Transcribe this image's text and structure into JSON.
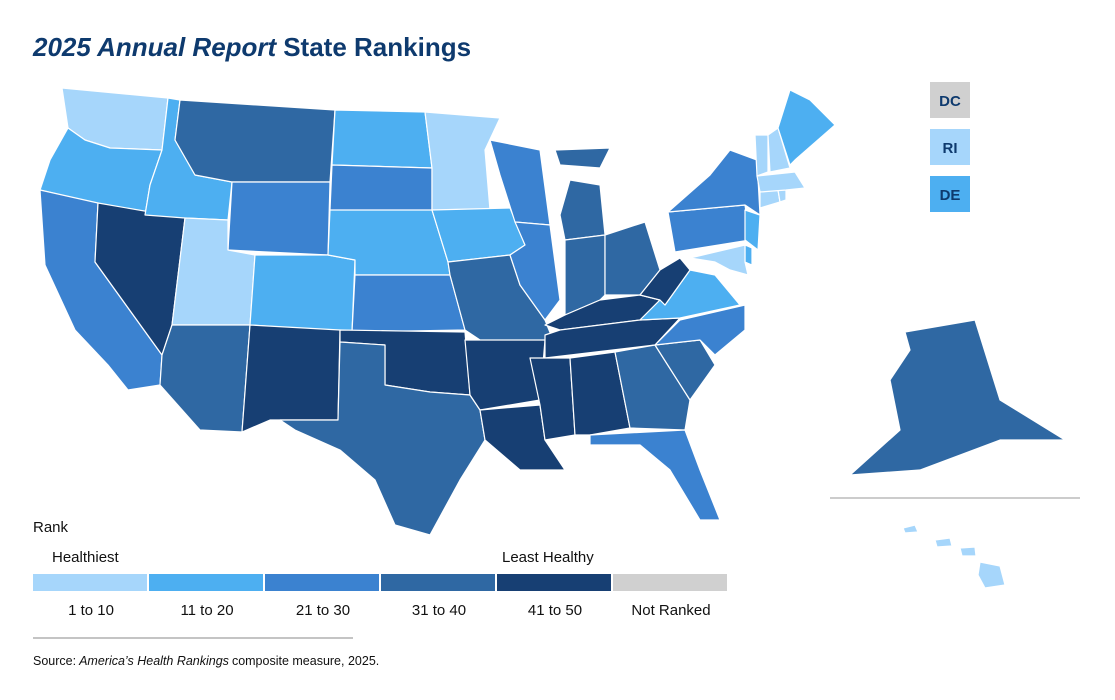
{
  "header": {
    "title_italic": "2025 Annual Report",
    "title_rest": "State Rankings"
  },
  "legend": {
    "heading": "Rank",
    "low_label": "Healthiest",
    "high_label": "Least Healthy",
    "tiers": [
      {
        "label": "1 to 10",
        "color": "#a6d6fb"
      },
      {
        "label": "11 to 20",
        "color": "#4daff1"
      },
      {
        "label": "21 to 30",
        "color": "#3b82d0"
      },
      {
        "label": "31 to 40",
        "color": "#2f68a3"
      },
      {
        "label": "41 to 50",
        "color": "#173f73"
      },
      {
        "label": "Not Ranked",
        "color": "#d0d0d0"
      }
    ]
  },
  "map": {
    "regions": [
      0,
      1,
      2,
      4,
      1,
      3,
      2,
      0,
      3,
      1,
      4,
      1,
      2,
      1,
      2,
      4,
      3,
      0,
      1,
      3,
      4,
      4,
      2,
      2,
      3,
      3,
      3,
      4,
      4,
      4,
      4,
      3,
      2,
      3,
      2,
      1,
      4,
      2,
      2,
      1,
      1,
      0,
      0,
      0,
      0,
      0,
      0,
      1,
      3,
      0
    ],
    "boxes": [
      {
        "label": "DC",
        "tier": 5
      },
      {
        "label": "RI",
        "tier": 0
      },
      {
        "label": "DE",
        "tier": 1
      }
    ]
  },
  "source": {
    "prefix": "Source:",
    "italic": "America’s Health Rankings",
    "suffix": "composite measure, 2025."
  }
}
